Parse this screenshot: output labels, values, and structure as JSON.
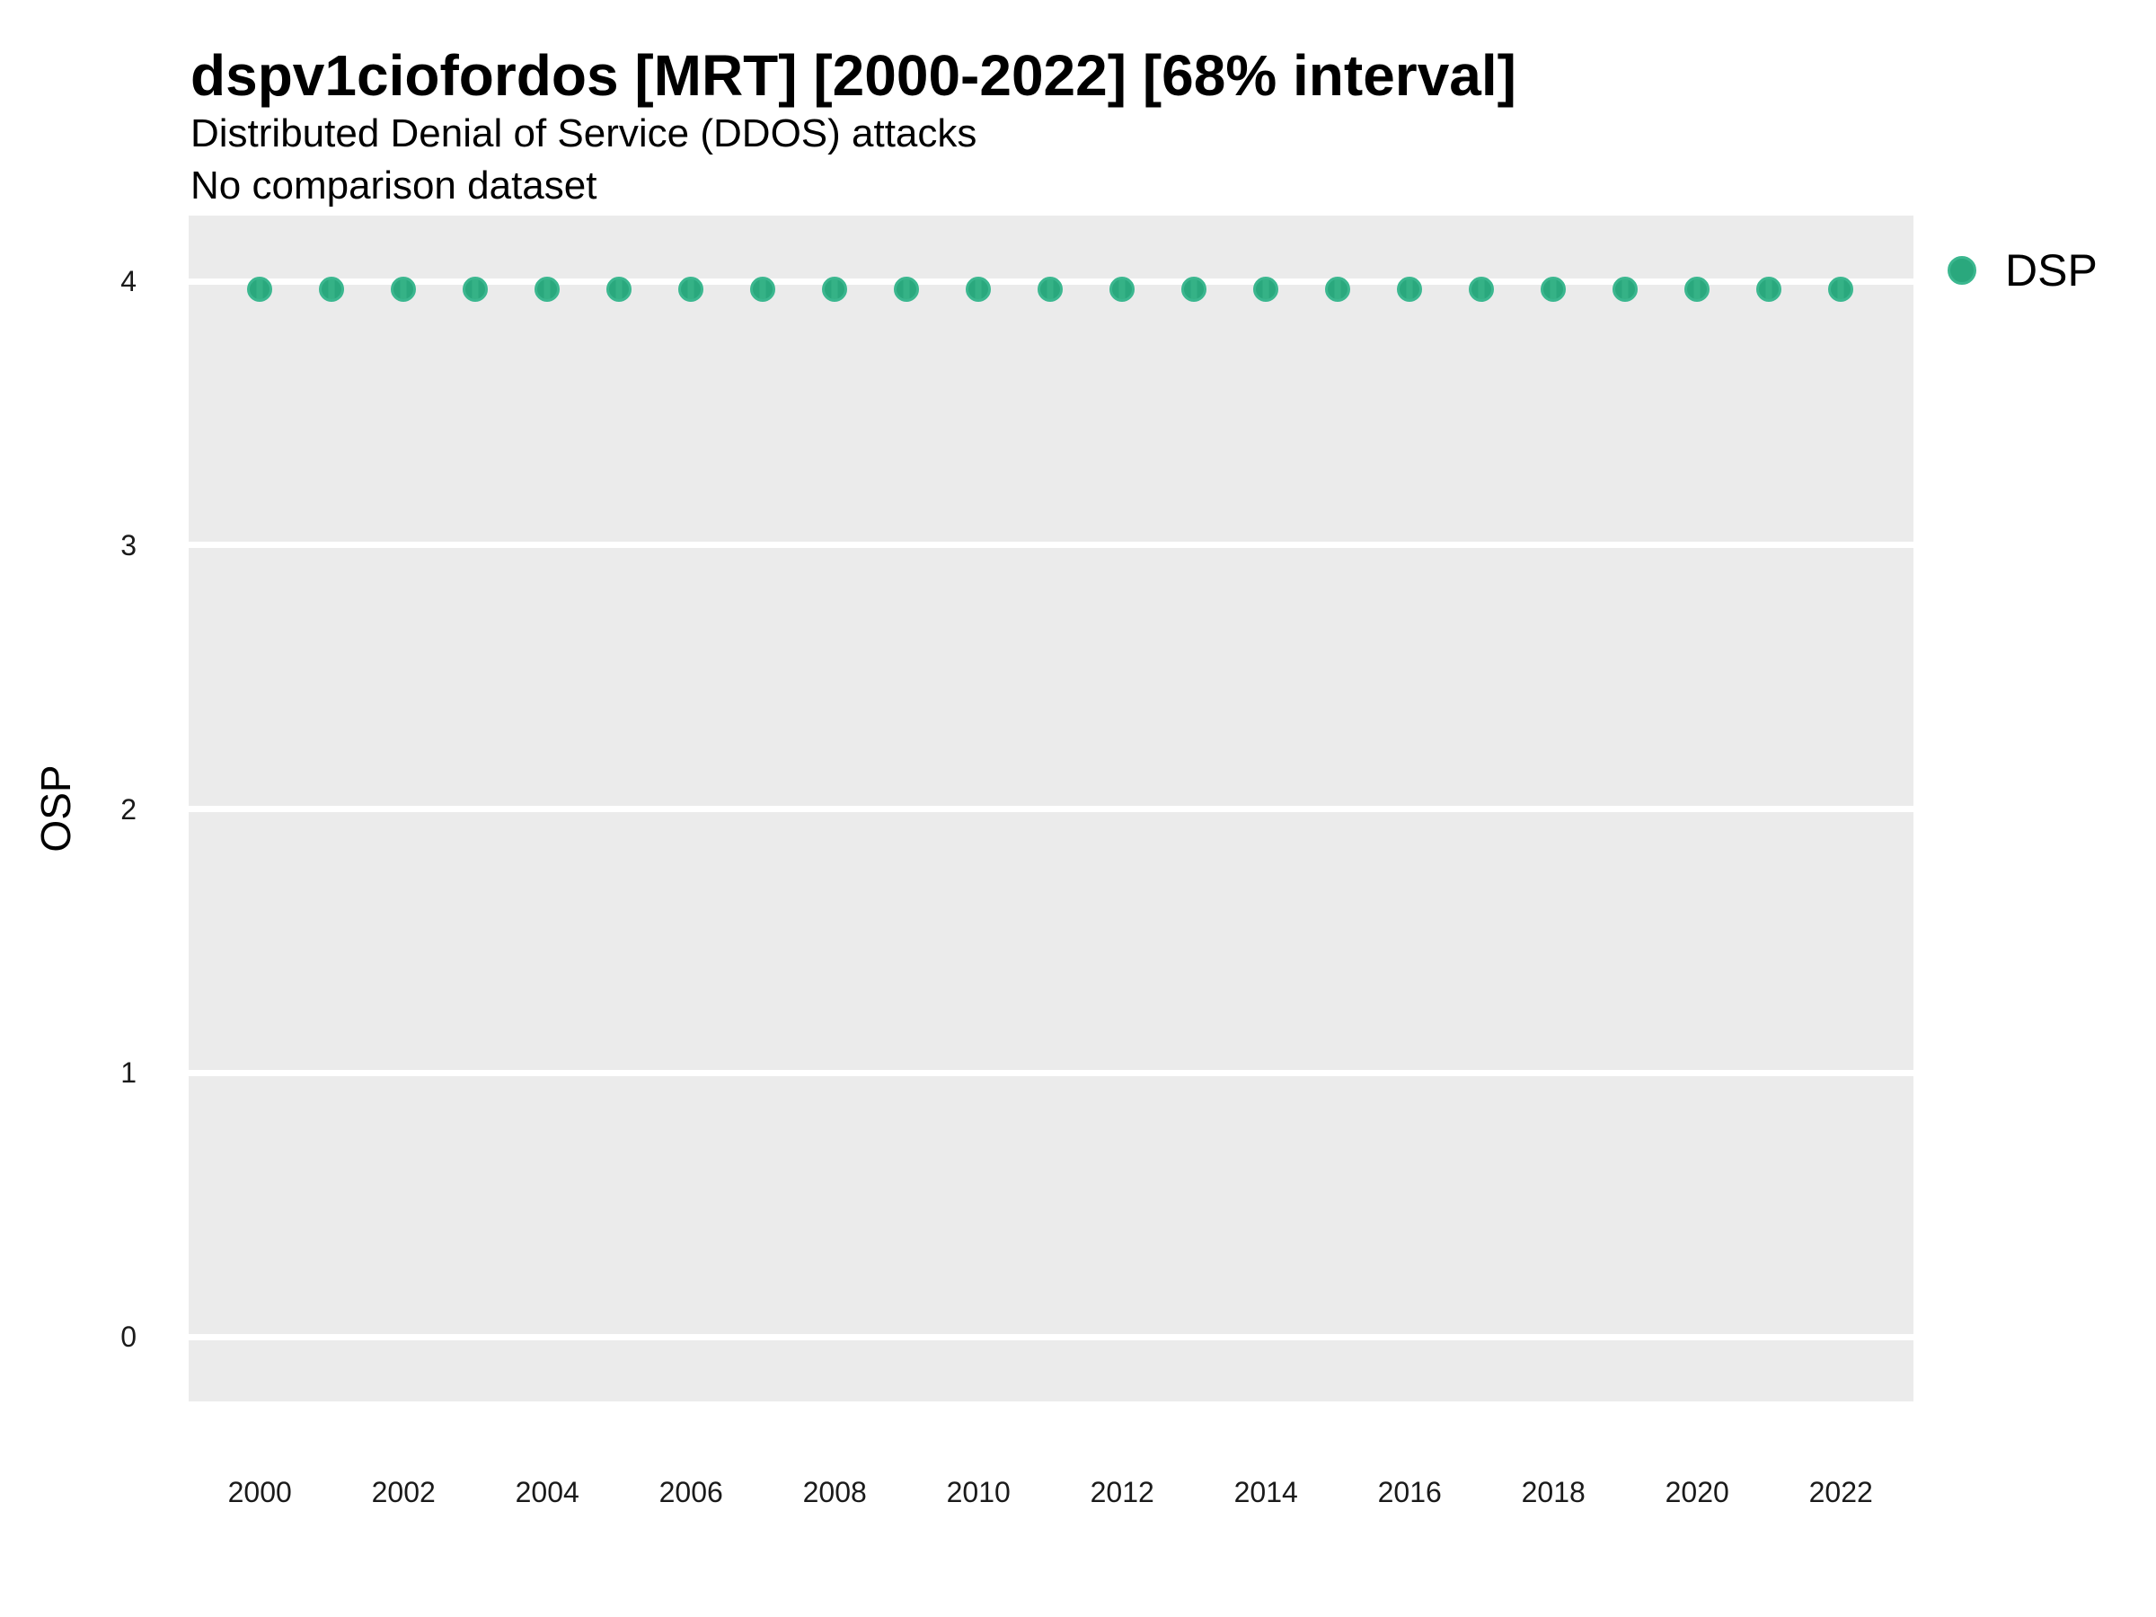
{
  "header": {
    "title": "dspv1ciofordos [MRT] [2000-2022] [68% interval]",
    "subtitle": "Distributed Denial of Service (DDOS) attacks",
    "note": "No comparison dataset"
  },
  "chart_data": {
    "type": "scatter",
    "title": "dspv1ciofordos [MRT] [2000-2022] [68% interval]",
    "subtitle": "Distributed Denial of Service (DDOS) attacks",
    "note": "No comparison dataset",
    "xlabel": "",
    "ylabel": "OSP",
    "interval_label": "68% interval",
    "x": [
      2000,
      2001,
      2002,
      2003,
      2004,
      2005,
      2006,
      2007,
      2008,
      2009,
      2010,
      2011,
      2012,
      2013,
      2014,
      2015,
      2016,
      2017,
      2018,
      2019,
      2020,
      2021,
      2022
    ],
    "series": [
      {
        "name": "DSP",
        "values": [
          3.97,
          3.97,
          3.97,
          3.97,
          3.97,
          3.97,
          3.97,
          3.97,
          3.97,
          3.97,
          3.97,
          3.97,
          3.97,
          3.97,
          3.97,
          3.97,
          3.97,
          3.97,
          3.97,
          3.97,
          3.97,
          3.97,
          3.97
        ]
      }
    ],
    "xticks": [
      2000,
      2002,
      2004,
      2006,
      2008,
      2010,
      2012,
      2014,
      2016,
      2018,
      2020,
      2022
    ],
    "yticks": [
      0,
      1,
      2,
      3,
      4
    ],
    "xlim": [
      1999.01,
      2023.01
    ],
    "ylim": [
      -0.245,
      4.249
    ],
    "grid": "horizontal-major-only",
    "legend_position": "right-top",
    "colors": {
      "point_fill": "#2aa87d",
      "point_ring": "#3bb78f",
      "point_stripe": "#35b286",
      "panel_bg": "#ebebeb",
      "gridline": "#ffffff"
    }
  }
}
